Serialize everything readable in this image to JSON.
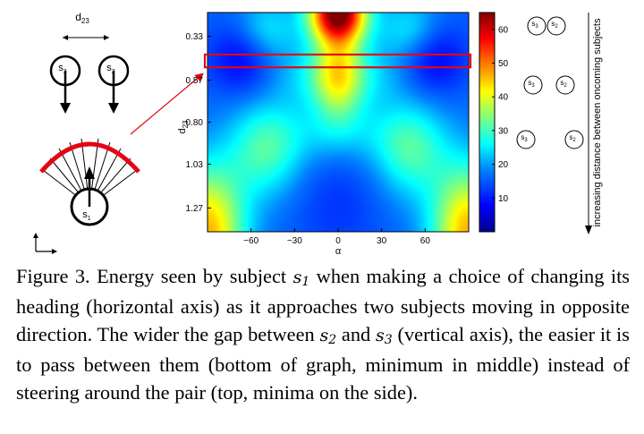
{
  "figure": {
    "left_diagram": {
      "distance_label": "d",
      "distance_sub": "23",
      "subject_a": {
        "name": "s",
        "sub": "3"
      },
      "subject_b": {
        "name": "s",
        "sub": "2"
      },
      "subject_main": {
        "name": "s",
        "sub": "1"
      }
    },
    "right_diagram": {
      "axis_label": "increasing distance between oncoming subjects",
      "rows": [
        [
          {
            "name": "s",
            "sub": "3"
          },
          {
            "name": "s",
            "sub": "2"
          }
        ],
        [
          {
            "name": "s",
            "sub": "3"
          },
          {
            "name": "s",
            "sub": "2"
          }
        ],
        [
          {
            "name": "s",
            "sub": "3"
          },
          {
            "name": "s",
            "sub": "2"
          }
        ]
      ]
    },
    "colormap_stops": [
      "#00008f",
      "#0000ff",
      "#0080ff",
      "#00ffff",
      "#80ff80",
      "#ffff00",
      "#ff8000",
      "#ff0000",
      "#800000"
    ],
    "highlight_color": "#e30613"
  },
  "chart_data": {
    "type": "heatmap",
    "title": "",
    "xlabel": "α",
    "ylabel": "d",
    "ylabel_sub": "23",
    "x_range": [
      -90,
      90
    ],
    "y_range": [
      0.2,
      1.4
    ],
    "x_ticks": [
      -60,
      -30,
      0,
      30,
      60
    ],
    "x_tick_labels": [
      "−60",
      "−30",
      "0",
      "30",
      "60"
    ],
    "y_ticks": [
      0.33,
      0.57,
      0.8,
      1.03,
      1.27
    ],
    "y_tick_labels": [
      "0.33",
      "0.57",
      "0.80",
      "1.03",
      "1.27"
    ],
    "colorbar": {
      "range": [
        0,
        65
      ],
      "ticks": [
        10,
        20,
        30,
        40,
        50,
        60
      ],
      "tick_labels": [
        "10",
        "20",
        "30",
        "40",
        "50",
        "60"
      ]
    },
    "highlighted_d_range": [
      0.43,
      0.5
    ],
    "z_features": [
      {
        "d": 0.2,
        "alpha": 0,
        "energy": 64
      },
      {
        "d": 0.57,
        "alpha": 0,
        "energy": 45
      },
      {
        "d": 0.45,
        "alpha": 60,
        "energy": 20
      },
      {
        "d": 1.2,
        "alpha": 0,
        "energy": 18
      },
      {
        "d": 1.35,
        "alpha": -80,
        "energy": 45
      },
      {
        "d": 1.35,
        "alpha": 80,
        "energy": 45
      }
    ]
  },
  "caption": {
    "label": "Figure 3.",
    "part1": " Energy seen by subject ",
    "var1": "s",
    "var1_sub": "1",
    "part2": " when making a choice of changing its heading (horizontal axis) as it approaches two subjects moving in opposite direction. The wider the gap between ",
    "var2": "s",
    "var2_sub": "2",
    "part3": " and ",
    "var3": "s",
    "var3_sub": "3",
    "part4": " (vertical axis), the easier it is to pass between them (bottom of graph, minimum in middle) instead of steering around the pair (top, minima on the side)."
  }
}
